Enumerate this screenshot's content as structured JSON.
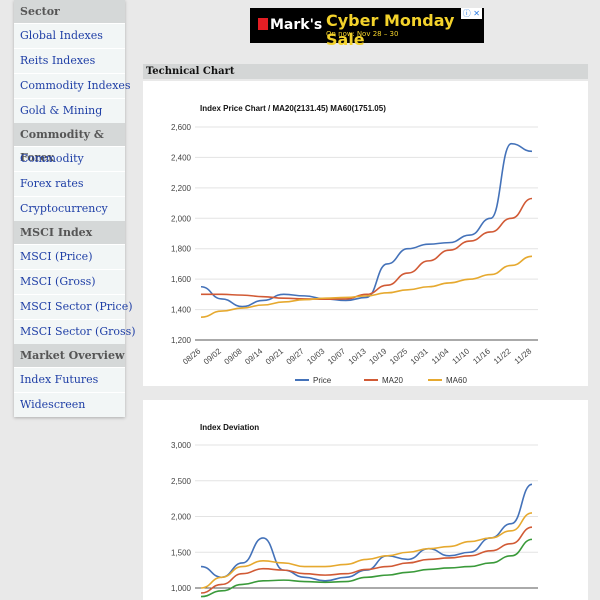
{
  "sidebar": {
    "sections": [
      {
        "header": "Sector",
        "items": [
          "Global Indexes",
          "Reits Indexes",
          "Commodity Indexes",
          "Gold & Mining"
        ]
      },
      {
        "header": "Commodity & Forex",
        "items": [
          "Commodity",
          "Forex rates",
          "Cryptocurrency"
        ]
      },
      {
        "header": "MSCI Index",
        "items": [
          "MSCI (Price)",
          "MSCI (Gross)",
          "MSCI Sector (Price)",
          "MSCI Sector (Gross)"
        ]
      },
      {
        "header": "Market Overview",
        "items": [
          "Index Futures",
          "Widescreen"
        ]
      }
    ]
  },
  "ad": {
    "brand": "Mark's",
    "headline": "Cyber Monday Sale",
    "subline": "On now: Nov 28 – 30",
    "icons": "ⓘ ✕"
  },
  "panel": {
    "title": "Technical Chart"
  },
  "chart_data": [
    {
      "type": "line",
      "title": "Index Price Chart / MA20(2131.45) MA60(1751.05)",
      "x": [
        "08/26",
        "09/02",
        "09/08",
        "09/14",
        "09/21",
        "09/27",
        "10/03",
        "10/07",
        "10/13",
        "10/19",
        "10/25",
        "10/31",
        "11/04",
        "11/10",
        "11/16",
        "11/22",
        "11/28"
      ],
      "ylim": [
        1200,
        2600
      ],
      "yticks": [
        "1,200",
        "1,400",
        "1,600",
        "1,800",
        "2,000",
        "2,200",
        "2,400",
        "2,600"
      ],
      "legend": "bottom",
      "series": [
        {
          "name": "Price",
          "color": "#4472b9",
          "values": [
            1550,
            1470,
            1420,
            1460,
            1500,
            1490,
            1470,
            1460,
            1480,
            1700,
            1800,
            1830,
            1840,
            1890,
            2000,
            2490,
            2440
          ]
        },
        {
          "name": "MA20",
          "color": "#d15a35",
          "values": [
            1500,
            1500,
            1495,
            1485,
            1475,
            1470,
            1468,
            1470,
            1500,
            1560,
            1640,
            1720,
            1790,
            1850,
            1910,
            2000,
            2130
          ]
        },
        {
          "name": "MA60",
          "color": "#e6a92f",
          "values": [
            1350,
            1390,
            1410,
            1430,
            1450,
            1465,
            1475,
            1480,
            1490,
            1510,
            1530,
            1550,
            1575,
            1600,
            1630,
            1690,
            1750
          ]
        }
      ]
    },
    {
      "type": "line",
      "title": "Index Deviation",
      "ylim": [
        1000,
        3000
      ],
      "yticks": [
        "1,000",
        "1,500",
        "2,000",
        "2,500",
        "3,000"
      ],
      "series": [
        {
          "color": "#4472b9",
          "values": [
            1300,
            1150,
            1350,
            1700,
            1250,
            1150,
            1100,
            1150,
            1250,
            1450,
            1400,
            1550,
            1450,
            1500,
            1700,
            1900,
            2450
          ]
        },
        {
          "color": "#e6a92f",
          "values": [
            1000,
            1150,
            1300,
            1380,
            1350,
            1300,
            1300,
            1330,
            1400,
            1450,
            1500,
            1550,
            1580,
            1650,
            1700,
            1800,
            2050
          ]
        },
        {
          "color": "#d15a35",
          "values": [
            930,
            1050,
            1200,
            1270,
            1250,
            1200,
            1180,
            1200,
            1260,
            1300,
            1350,
            1400,
            1420,
            1450,
            1520,
            1620,
            1850
          ]
        },
        {
          "color": "#3a9a3a",
          "values": [
            880,
            960,
            1050,
            1100,
            1110,
            1090,
            1080,
            1090,
            1150,
            1180,
            1220,
            1260,
            1280,
            1300,
            1350,
            1450,
            1680
          ]
        }
      ]
    }
  ]
}
